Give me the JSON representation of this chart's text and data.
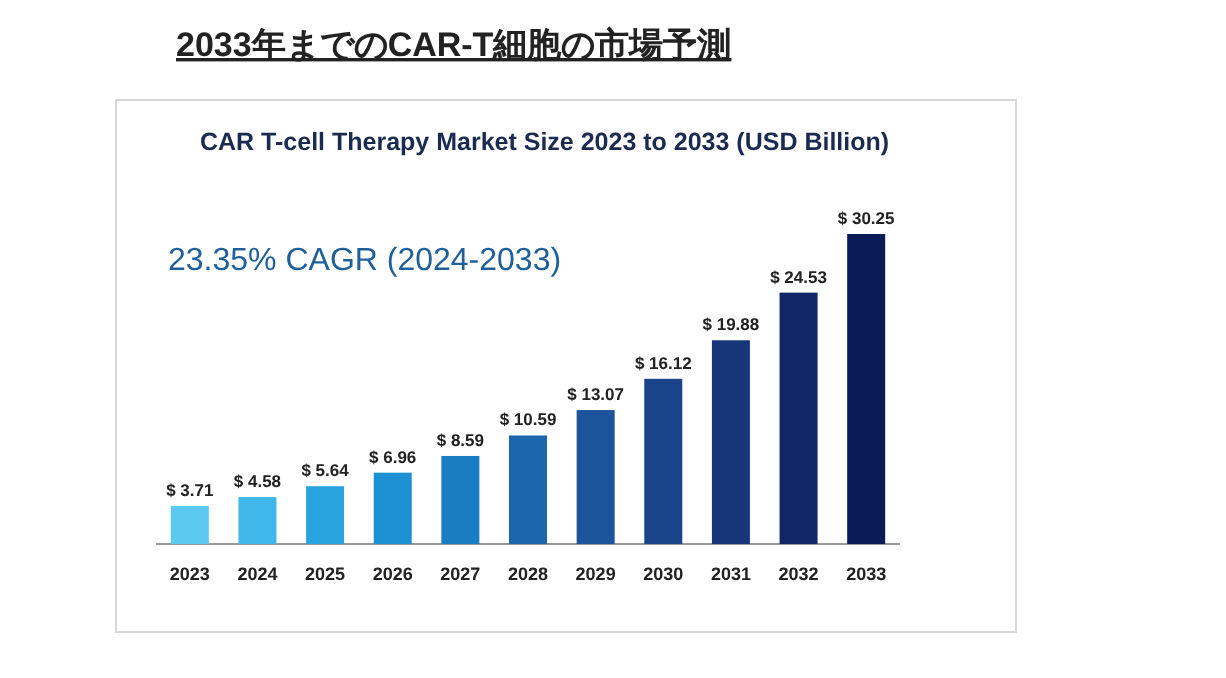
{
  "chart_data": {
    "type": "bar",
    "title": "2033年までのCAR-T細胞の市場予測",
    "subtitle": "CAR T-cell Therapy Market Size 2023 to 2033 (USD Billion)",
    "categories": [
      "2023",
      "2024",
      "2025",
      "2026",
      "2027",
      "2028",
      "2029",
      "2030",
      "2031",
      "2032",
      "2033"
    ],
    "values": [
      3.71,
      4.58,
      5.64,
      6.96,
      8.59,
      10.59,
      13.07,
      16.12,
      19.88,
      24.53,
      30.25
    ],
    "value_labels": [
      "$ 3.71",
      "$ 4.58",
      "$ 5.64",
      "$ 6.96",
      "$ 8.59",
      "$ 10.59",
      "$ 13.07",
      "$ 16.12",
      "$ 19.88",
      "$ 24.53",
      "$ 30.25"
    ],
    "colors": [
      "#5cc9f0",
      "#40b7ea",
      "#2aa4de",
      "#1d90d1",
      "#1a7cc1",
      "#1b67ad",
      "#1b549b",
      "#1a4489",
      "#163679",
      "#102767",
      "#0b1b57"
    ],
    "annotations": [
      "23.35% CAGR (2024-2033)"
    ]
  }
}
